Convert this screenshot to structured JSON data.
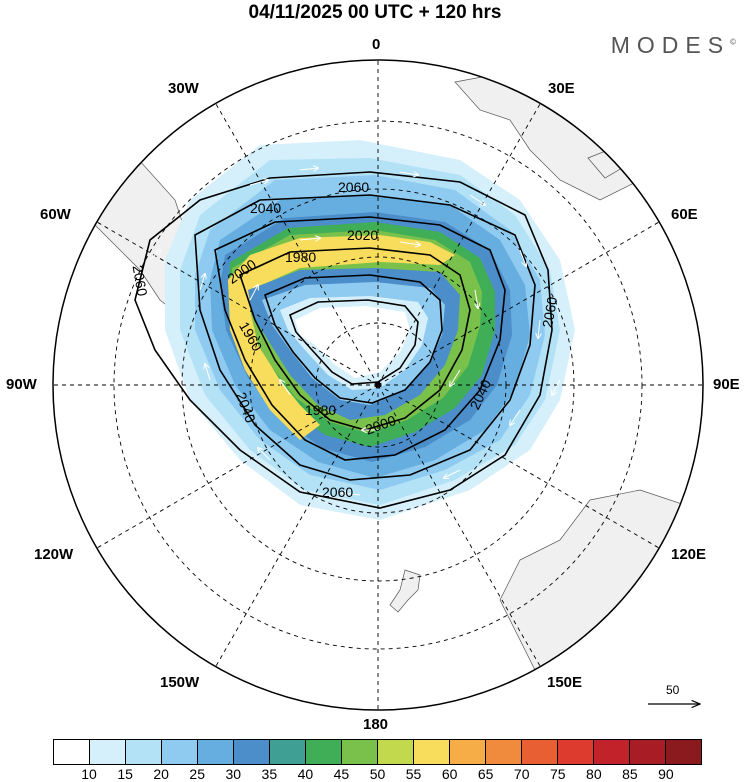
{
  "title": "04/11/2025  00 UTC  + 120 hrs",
  "brand": "MODES",
  "brand_mark": "©",
  "longitude_labels": {
    "lon_0": "0",
    "lon_30e": "30E",
    "lon_60e": "60E",
    "lon_90e": "90E",
    "lon_120e": "120E",
    "lon_150e": "150E",
    "lon_180": "180",
    "lon_150w": "150W",
    "lon_120w": "120W",
    "lon_90w": "90W",
    "lon_60w": "60W",
    "lon_30w": "30W"
  },
  "contour_labels": [
    "2060",
    "2040",
    "2020",
    "1980",
    "2000",
    "1960",
    "2060",
    "2040",
    "1980",
    "2000",
    "2040",
    "2060",
    "2060"
  ],
  "reference_vector": {
    "value": "50"
  },
  "colorbar": {
    "ticks": [
      "10",
      "15",
      "20",
      "25",
      "30",
      "35",
      "40",
      "45",
      "50",
      "55",
      "60",
      "65",
      "70",
      "75",
      "80",
      "85",
      "90"
    ],
    "colors": [
      "#ffffff",
      "#d6f0fb",
      "#b3e2f7",
      "#8fcbf0",
      "#66ade0",
      "#4c8ec9",
      "#3f9f94",
      "#3fae57",
      "#79c14a",
      "#c2d94d",
      "#f8dc5c",
      "#f6ad48",
      "#f08a3c",
      "#e85f34",
      "#dd3b2e",
      "#c2222a",
      "#a81c26",
      "#8b1a1e"
    ]
  }
}
